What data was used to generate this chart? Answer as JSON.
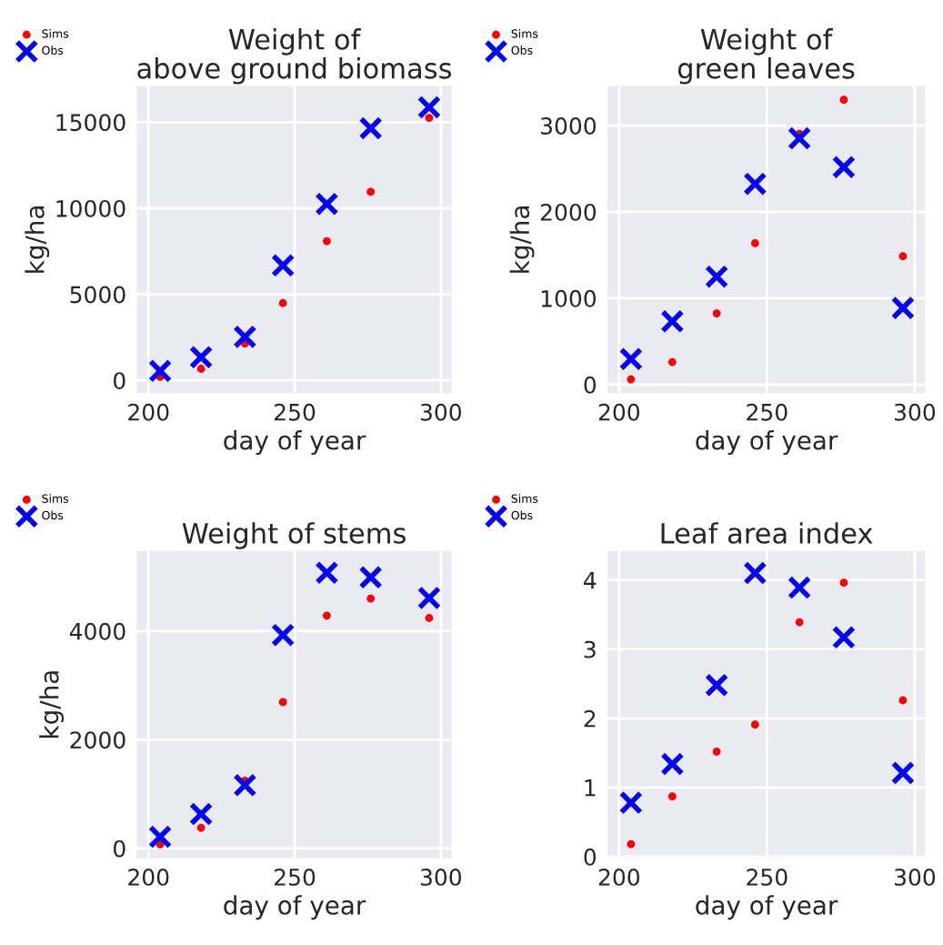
{
  "chart_data": [
    {
      "type": "scatter",
      "title": "Weight of\nabove ground biomass",
      "xlabel": "day of year",
      "ylabel": "kg/ha",
      "xlim": [
        196,
        303.7
      ],
      "ylim": [
        -742,
        17102
      ],
      "xticks": [
        200,
        250,
        300
      ],
      "yticks": [
        0,
        5000,
        10000,
        15000
      ],
      "grid": true,
      "legend": "top left",
      "x": [
        204,
        218,
        233,
        246,
        261,
        276,
        296
      ],
      "series": [
        {
          "name": "Sims",
          "color": "#ff0000",
          "marker": "circle",
          "values": [
            194,
            671,
            2138,
            4488,
            8092,
            10954,
            15247
          ]
        },
        {
          "name": "Obs",
          "color": "#0000ff",
          "marker": "cross",
          "values": [
            548,
            1343,
            2527,
            6678,
            10247,
            14647,
            15866
          ]
        }
      ]
    },
    {
      "type": "scatter",
      "title": "Weight of\ngreen leaves",
      "xlabel": "day of year",
      "ylabel": "kg/ha",
      "xlim": [
        196,
        303.5
      ],
      "ylim": [
        -99,
        3458
      ],
      "xticks": [
        200,
        250,
        300
      ],
      "yticks": [
        0,
        1000,
        2000,
        3000
      ],
      "grid": true,
      "legend": "top left",
      "x": [
        204,
        218,
        233,
        246,
        261,
        276,
        296
      ],
      "series": [
        {
          "name": "Sims",
          "color": "#ff0000",
          "marker": "circle",
          "values": [
            60,
            261,
            824,
            1637,
            2905,
            3299,
            1486
          ]
        },
        {
          "name": "Obs",
          "color": "#0000ff",
          "marker": "cross",
          "values": [
            296,
            732,
            1250,
            2324,
            2852,
            2518,
            887
          ]
        }
      ]
    },
    {
      "type": "scatter",
      "title": "Weight of stems",
      "xlabel": "day of year",
      "ylabel": "kg/ha",
      "xlim": [
        196,
        303.7
      ],
      "ylim": [
        -179,
        5475
      ],
      "xticks": [
        200,
        250,
        300
      ],
      "yticks": [
        0,
        2000,
        4000
      ],
      "grid": true,
      "legend": "top left",
      "x": [
        204,
        218,
        233,
        246,
        261,
        276,
        296
      ],
      "series": [
        {
          "name": "Sims",
          "color": "#ff0000",
          "marker": "circle",
          "values": [
            73,
            380,
            1246,
            2693,
            4285,
            4598,
            4240
          ]
        },
        {
          "name": "Obs",
          "color": "#0000ff",
          "marker": "cross",
          "values": [
            212,
            631,
            1162,
            3927,
            5073,
            4989,
            4609
          ]
        }
      ]
    },
    {
      "type": "scatter",
      "title": "Leaf area index",
      "xlabel": "day of year",
      "xlim": [
        196,
        303.5
      ],
      "ylim": [
        -0.02,
        4.42
      ],
      "xticks": [
        200,
        250,
        300
      ],
      "yticks": [
        0,
        1,
        2,
        3,
        4
      ],
      "grid": true,
      "legend": "top left",
      "x": [
        204,
        218,
        233,
        246,
        261,
        276,
        296
      ],
      "series": [
        {
          "name": "Sims",
          "color": "#ff0000",
          "marker": "circle",
          "values": [
            0.18,
            0.87,
            1.52,
            1.91,
            3.39,
            3.96,
            2.26
          ]
        },
        {
          "name": "Obs",
          "color": "#0000ff",
          "marker": "cross",
          "values": [
            0.78,
            1.34,
            2.48,
            4.1,
            3.89,
            3.17,
            1.21
          ]
        }
      ]
    }
  ]
}
